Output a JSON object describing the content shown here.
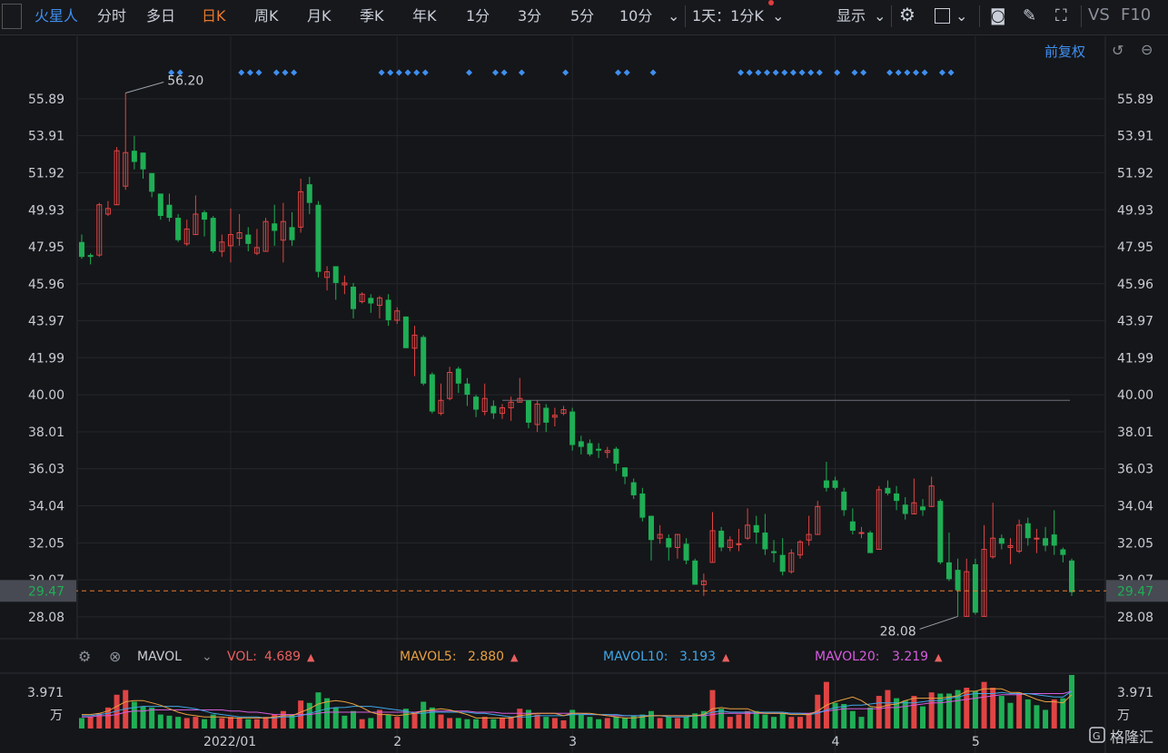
{
  "toolbar": {
    "stock_name": "火星人",
    "tabs": [
      "分时",
      "多日",
      "日K",
      "周K",
      "月K",
      "季K",
      "年K",
      "1分",
      "3分",
      "5分",
      "10分"
    ],
    "active_tab": "日K",
    "period_select": "1天：1分K",
    "display_label": "显示",
    "right_labels": [
      "VS",
      "F10"
    ]
  },
  "adjust_label": "前复权",
  "price_axis": {
    "ticks": [
      "55.89",
      "53.91",
      "51.92",
      "49.93",
      "47.95",
      "45.96",
      "43.97",
      "41.99",
      "40.00",
      "38.01",
      "36.03",
      "34.04",
      "32.05",
      "30.07",
      "28.08"
    ],
    "tick_values": [
      55.89,
      53.91,
      51.92,
      49.93,
      47.95,
      45.96,
      43.97,
      41.99,
      40.0,
      38.01,
      36.03,
      34.04,
      32.05,
      30.07,
      28.08
    ],
    "current_price": "29.47",
    "current_value": 29.47,
    "max_label": "56.20",
    "min_label": "28.08",
    "ref_line_value": 39.7
  },
  "indicator_bar": {
    "name": "MAVOL",
    "vol_label": "VOL:",
    "vol_value": "4.689",
    "mavol5_label": "MAVOL5:",
    "mavol5_value": "2.880",
    "mavol10_label": "MAVOL10:",
    "mavol10_value": "3.193",
    "mavol20_label": "MAVOL20:",
    "mavol20_value": "3.219"
  },
  "volume_axis": {
    "top": "3.971",
    "unit": "万"
  },
  "date_axis": [
    "2022/01",
    "2",
    "3",
    "4",
    "5"
  ],
  "colors": {
    "up": "#e04444",
    "down": "#1fae55",
    "bg": "#151619",
    "mavol5": "#e8a040",
    "mavol10": "#3fa6e8",
    "mavol20": "#d65ce0",
    "vol_label": "#e86060",
    "accent": "#3f8ff0"
  },
  "watermark": "格隆汇",
  "chart_data": {
    "type": "candlestick",
    "y_range": [
      27.0,
      57.2
    ],
    "candles": [
      [
        48.2,
        47.4,
        48.6,
        47.3
      ],
      [
        47.5,
        47.4,
        47.6,
        47.0
      ],
      [
        47.5,
        50.2,
        50.3,
        47.4
      ],
      [
        49.7,
        50.0,
        50.4,
        49.6
      ],
      [
        50.2,
        53.1,
        53.3,
        50.2
      ],
      [
        51.2,
        53.0,
        56.2,
        51.0
      ],
      [
        53.1,
        52.5,
        53.9,
        52.1
      ],
      [
        53.0,
        52.1,
        53.0,
        51.6
      ],
      [
        51.9,
        50.9,
        51.9,
        50.6
      ],
      [
        50.8,
        49.6,
        50.8,
        49.4
      ],
      [
        50.2,
        49.5,
        50.8,
        49.3
      ],
      [
        49.5,
        48.3,
        49.7,
        48.2
      ],
      [
        48.1,
        48.9,
        49.4,
        48.0
      ],
      [
        48.6,
        49.7,
        50.7,
        48.6
      ],
      [
        49.8,
        49.4,
        49.9,
        48.5
      ],
      [
        49.5,
        47.7,
        49.6,
        47.6
      ],
      [
        47.7,
        48.2,
        48.6,
        47.4
      ],
      [
        48.0,
        48.6,
        50.0,
        47.1
      ],
      [
        48.4,
        48.7,
        49.7,
        48.0
      ],
      [
        48.6,
        48.1,
        49.0,
        47.7
      ],
      [
        47.6,
        47.9,
        48.9,
        47.5
      ],
      [
        47.7,
        49.3,
        49.5,
        47.7
      ],
      [
        49.2,
        48.8,
        50.2,
        48.0
      ],
      [
        48.3,
        49.3,
        50.3,
        47.1
      ],
      [
        49.0,
        48.3,
        49.8,
        48.0
      ],
      [
        49.0,
        50.9,
        51.6,
        48.7
      ],
      [
        51.3,
        50.3,
        51.7,
        49.7
      ],
      [
        50.2,
        46.6,
        50.4,
        46.3
      ],
      [
        46.3,
        46.6,
        46.9,
        45.6
      ],
      [
        46.9,
        46.0,
        46.9,
        45.1
      ],
      [
        45.9,
        46.0,
        46.4,
        45.4
      ],
      [
        45.8,
        44.6,
        46.0,
        44.1
      ],
      [
        45.0,
        45.4,
        45.5,
        44.9
      ],
      [
        45.2,
        44.9,
        45.4,
        44.4
      ],
      [
        44.8,
        45.2,
        45.3,
        44.1
      ],
      [
        45.1,
        44.0,
        45.4,
        43.7
      ],
      [
        44.0,
        44.5,
        44.7,
        43.8
      ],
      [
        44.2,
        42.5,
        44.2,
        42.6
      ],
      [
        42.5,
        43.2,
        43.7,
        41.0
      ],
      [
        43.1,
        40.6,
        43.2,
        40.5
      ],
      [
        41.1,
        39.1,
        41.2,
        39.0
      ],
      [
        39.0,
        39.7,
        40.6,
        38.9
      ],
      [
        39.8,
        41.2,
        41.5,
        39.7
      ],
      [
        41.4,
        40.6,
        41.5,
        40.1
      ],
      [
        40.6,
        40.0,
        40.9,
        39.4
      ],
      [
        39.9,
        39.2,
        40.0,
        38.8
      ],
      [
        39.1,
        39.8,
        40.6,
        38.9
      ],
      [
        39.4,
        39.0,
        39.7,
        38.7
      ],
      [
        39.0,
        39.3,
        39.5,
        38.7
      ],
      [
        39.3,
        39.6,
        39.9,
        38.6
      ],
      [
        39.6,
        39.8,
        40.9,
        39.6
      ],
      [
        39.7,
        38.5,
        39.7,
        38.2
      ],
      [
        38.4,
        39.5,
        39.7,
        38.0
      ],
      [
        39.3,
        38.5,
        39.5,
        38.0
      ],
      [
        38.8,
        38.9,
        39.3,
        38.3
      ],
      [
        39.0,
        39.2,
        39.4,
        38.9
      ],
      [
        39.1,
        37.3,
        39.3,
        37.0
      ],
      [
        37.5,
        37.2,
        37.8,
        36.8
      ],
      [
        37.4,
        36.8,
        37.6,
        36.7
      ],
      [
        37.1,
        37.0,
        37.4,
        36.6
      ],
      [
        36.9,
        37.0,
        37.2,
        36.6
      ],
      [
        37.1,
        36.3,
        37.2,
        35.9
      ],
      [
        36.1,
        35.6,
        36.1,
        35.2
      ],
      [
        35.3,
        34.6,
        35.5,
        34.4
      ],
      [
        34.7,
        33.4,
        35.0,
        33.2
      ],
      [
        33.5,
        32.2,
        33.5,
        31.1
      ],
      [
        32.3,
        32.5,
        33.0,
        32.0
      ],
      [
        32.3,
        31.8,
        32.5,
        31.1
      ],
      [
        31.8,
        32.5,
        32.5,
        31.2
      ],
      [
        32.0,
        31.1,
        32.3,
        30.9
      ],
      [
        31.1,
        29.8,
        31.2,
        29.8
      ],
      [
        29.8,
        30.0,
        30.4,
        29.2
      ],
      [
        31.0,
        32.7,
        33.7,
        31.0
      ],
      [
        32.7,
        31.8,
        32.9,
        31.6
      ],
      [
        31.8,
        32.2,
        32.4,
        31.6
      ],
      [
        32.0,
        32.0,
        32.8,
        31.6
      ],
      [
        32.3,
        33.0,
        33.9,
        32.2
      ],
      [
        33.0,
        32.6,
        33.5,
        32.0
      ],
      [
        32.6,
        31.7,
        33.6,
        31.4
      ],
      [
        31.6,
        31.5,
        32.2,
        31.0
      ],
      [
        31.4,
        30.5,
        32.3,
        30.3
      ],
      [
        30.5,
        31.5,
        31.7,
        30.4
      ],
      [
        31.4,
        32.1,
        32.2,
        31.2
      ],
      [
        32.2,
        32.5,
        33.5,
        31.9
      ],
      [
        32.5,
        34.0,
        34.3,
        32.5
      ],
      [
        35.4,
        35.0,
        36.4,
        34.8
      ],
      [
        35.4,
        35.0,
        35.6,
        34.9
      ],
      [
        34.8,
        33.8,
        35.0,
        33.5
      ],
      [
        33.2,
        32.7,
        33.9,
        32.5
      ],
      [
        32.6,
        32.6,
        32.9,
        32.3
      ],
      [
        32.6,
        31.5,
        32.7,
        31.5
      ],
      [
        31.7,
        34.9,
        35.1,
        31.7
      ],
      [
        35.0,
        34.7,
        35.4,
        34.6
      ],
      [
        34.7,
        34.3,
        35.1,
        33.8
      ],
      [
        34.1,
        33.6,
        34.5,
        33.3
      ],
      [
        33.6,
        34.2,
        35.5,
        33.6
      ],
      [
        34.0,
        33.8,
        34.4,
        33.5
      ],
      [
        34.0,
        35.1,
        35.6,
        34.0
      ],
      [
        34.3,
        31.0,
        34.4,
        30.9
      ],
      [
        31.0,
        30.1,
        32.6,
        30.0
      ],
      [
        30.6,
        29.5,
        31.2,
        28.1
      ],
      [
        28.1,
        30.5,
        31.2,
        28.1
      ],
      [
        30.9,
        28.3,
        31.2,
        28.2
      ],
      [
        28.1,
        31.7,
        33.0,
        28.1
      ],
      [
        31.3,
        32.3,
        34.2,
        31.2
      ],
      [
        32.3,
        32.0,
        32.5,
        31.7
      ],
      [
        31.8,
        31.9,
        32.3,
        30.9
      ],
      [
        31.6,
        33.0,
        33.3,
        31.5
      ],
      [
        33.1,
        32.3,
        33.4,
        31.9
      ],
      [
        32.3,
        32.3,
        32.8,
        31.5
      ],
      [
        32.3,
        31.9,
        32.9,
        31.6
      ],
      [
        32.5,
        31.9,
        33.8,
        31.4
      ],
      [
        31.7,
        31.4,
        31.8,
        31.0
      ],
      [
        31.1,
        29.4,
        31.2,
        29.2
      ]
    ],
    "volume_max": 3.971,
    "volumes": [
      [
        0.9,
        0
      ],
      [
        1.0,
        1
      ],
      [
        1.3,
        1
      ],
      [
        1.8,
        1
      ],
      [
        2.9,
        1
      ],
      [
        3.3,
        1
      ],
      [
        2.3,
        0
      ],
      [
        1.9,
        0
      ],
      [
        1.8,
        0
      ],
      [
        1.2,
        0
      ],
      [
        1.1,
        0
      ],
      [
        1.0,
        0
      ],
      [
        0.9,
        1
      ],
      [
        1.0,
        1
      ],
      [
        0.8,
        0
      ],
      [
        1.2,
        0
      ],
      [
        0.9,
        1
      ],
      [
        1.0,
        1
      ],
      [
        0.9,
        1
      ],
      [
        0.8,
        0
      ],
      [
        0.8,
        1
      ],
      [
        1.0,
        1
      ],
      [
        1.2,
        1
      ],
      [
        1.5,
        1
      ],
      [
        1.2,
        0
      ],
      [
        2.4,
        1
      ],
      [
        2.2,
        0
      ],
      [
        3.1,
        0
      ],
      [
        2.6,
        0
      ],
      [
        1.8,
        0
      ],
      [
        1.1,
        0
      ],
      [
        1.5,
        0
      ],
      [
        0.8,
        1
      ],
      [
        0.9,
        0
      ],
      [
        1.6,
        1
      ],
      [
        1.2,
        0
      ],
      [
        1.0,
        1
      ],
      [
        1.7,
        0
      ],
      [
        1.3,
        1
      ],
      [
        2.3,
        0
      ],
      [
        1.8,
        0
      ],
      [
        1.2,
        1
      ],
      [
        0.9,
        1
      ],
      [
        0.9,
        0
      ],
      [
        0.8,
        0
      ],
      [
        0.8,
        0
      ],
      [
        1.0,
        1
      ],
      [
        0.8,
        0
      ],
      [
        0.9,
        1
      ],
      [
        1.0,
        1
      ],
      [
        1.7,
        1
      ],
      [
        1.6,
        0
      ],
      [
        1.2,
        1
      ],
      [
        1.0,
        0
      ],
      [
        0.9,
        1
      ],
      [
        0.7,
        1
      ],
      [
        1.6,
        0
      ],
      [
        1.2,
        0
      ],
      [
        1.0,
        0
      ],
      [
        0.8,
        0
      ],
      [
        0.9,
        1
      ],
      [
        1.0,
        0
      ],
      [
        0.9,
        0
      ],
      [
        1.1,
        0
      ],
      [
        1.2,
        0
      ],
      [
        1.5,
        0
      ],
      [
        0.9,
        1
      ],
      [
        1.0,
        0
      ],
      [
        0.9,
        1
      ],
      [
        1.0,
        0
      ],
      [
        1.3,
        0
      ],
      [
        1.5,
        0
      ],
      [
        3.3,
        1
      ],
      [
        1.7,
        0
      ],
      [
        1.0,
        1
      ],
      [
        1.2,
        1
      ],
      [
        1.5,
        1
      ],
      [
        1.5,
        0
      ],
      [
        1.2,
        0
      ],
      [
        1.0,
        0
      ],
      [
        1.3,
        0
      ],
      [
        1.0,
        1
      ],
      [
        1.0,
        1
      ],
      [
        1.3,
        1
      ],
      [
        2.9,
        1
      ],
      [
        4.0,
        1
      ],
      [
        2.2,
        0
      ],
      [
        2.1,
        0
      ],
      [
        1.5,
        0
      ],
      [
        1.0,
        0
      ],
      [
        1.8,
        0
      ],
      [
        2.8,
        1
      ],
      [
        3.3,
        1
      ],
      [
        2.6,
        0
      ],
      [
        2.4,
        0
      ],
      [
        2.8,
        1
      ],
      [
        1.9,
        0
      ],
      [
        3.1,
        1
      ],
      [
        3.0,
        0
      ],
      [
        3.0,
        0
      ],
      [
        3.3,
        0
      ],
      [
        3.5,
        1
      ],
      [
        3.2,
        0
      ],
      [
        4.0,
        1
      ],
      [
        3.5,
        1
      ],
      [
        2.8,
        0
      ],
      [
        2.2,
        0
      ],
      [
        3.1,
        1
      ],
      [
        2.5,
        0
      ],
      [
        2.0,
        0
      ],
      [
        1.6,
        0
      ],
      [
        2.5,
        1
      ],
      [
        2.6,
        0
      ],
      [
        4.7,
        0
      ]
    ],
    "mavol5": [
      1.2,
      1.2,
      1.3,
      1.5,
      1.9,
      2.3,
      2.4,
      2.4,
      2.2,
      2.0,
      1.7,
      1.4,
      1.2,
      1.1,
      1.0,
      1.0,
      1.0,
      0.9,
      0.9,
      0.9,
      0.9,
      0.9,
      1.0,
      1.1,
      1.1,
      1.4,
      1.7,
      2.1,
      2.3,
      2.4,
      2.3,
      2.1,
      1.8,
      1.4,
      1.2,
      1.2,
      1.1,
      1.2,
      1.3,
      1.5,
      1.6,
      1.7,
      1.6,
      1.4,
      1.2,
      0.9,
      0.9,
      0.9,
      0.9,
      0.9,
      1.1,
      1.2,
      1.3,
      1.3,
      1.3,
      1.1,
      1.3,
      1.3,
      1.3,
      1.2,
      1.1,
      1.0,
      0.9,
      0.9,
      1.0,
      1.1,
      1.1,
      1.1,
      1.1,
      1.1,
      1.1,
      1.2,
      1.7,
      1.8,
      1.7,
      1.7,
      1.7,
      1.4,
      1.3,
      1.3,
      1.3,
      1.2,
      1.2,
      1.2,
      1.5,
      2.0,
      2.3,
      2.5,
      2.7,
      2.4,
      1.9,
      1.8,
      2.0,
      2.1,
      2.4,
      2.6,
      2.6,
      2.6,
      2.6,
      2.7,
      2.8,
      3.2,
      3.2,
      3.4,
      3.4,
      3.4,
      3.1,
      3.1,
      2.8,
      2.5,
      2.3,
      2.3,
      2.2,
      2.9
    ],
    "mavol10": [
      1.1,
      1.1,
      1.2,
      1.3,
      1.5,
      1.7,
      1.8,
      1.9,
      1.9,
      1.9,
      1.9,
      1.9,
      1.8,
      1.7,
      1.5,
      1.3,
      1.2,
      1.1,
      1.0,
      1.0,
      1.0,
      0.9,
      0.9,
      1.0,
      1.0,
      1.1,
      1.3,
      1.5,
      1.7,
      1.8,
      1.8,
      1.9,
      1.9,
      1.9,
      1.8,
      1.7,
      1.6,
      1.5,
      1.3,
      1.3,
      1.4,
      1.4,
      1.4,
      1.4,
      1.4,
      1.3,
      1.3,
      1.2,
      1.1,
      1.0,
      1.0,
      1.0,
      1.1,
      1.1,
      1.1,
      1.1,
      1.2,
      1.2,
      1.2,
      1.2,
      1.2,
      1.2,
      1.1,
      1.1,
      1.1,
      1.1,
      1.1,
      1.0,
      1.0,
      1.0,
      1.1,
      1.2,
      1.4,
      1.5,
      1.4,
      1.4,
      1.4,
      1.4,
      1.4,
      1.4,
      1.4,
      1.3,
      1.3,
      1.2,
      1.3,
      1.6,
      1.8,
      1.9,
      2.0,
      2.0,
      2.1,
      2.2,
      2.2,
      2.2,
      2.2,
      2.2,
      2.3,
      2.4,
      2.4,
      2.6,
      2.7,
      2.9,
      3.0,
      3.0,
      3.0,
      3.1,
      3.0,
      3.0,
      3.0,
      2.9,
      2.8,
      2.7,
      2.7,
      3.2
    ],
    "mavol20": [
      1.0,
      1.0,
      1.1,
      1.1,
      1.2,
      1.4,
      1.5,
      1.5,
      1.6,
      1.6,
      1.6,
      1.6,
      1.6,
      1.6,
      1.6,
      1.6,
      1.6,
      1.5,
      1.5,
      1.4,
      1.4,
      1.3,
      1.2,
      1.2,
      1.2,
      1.2,
      1.2,
      1.3,
      1.4,
      1.4,
      1.4,
      1.4,
      1.4,
      1.4,
      1.4,
      1.4,
      1.4,
      1.4,
      1.4,
      1.5,
      1.5,
      1.5,
      1.5,
      1.5,
      1.5,
      1.4,
      1.4,
      1.4,
      1.3,
      1.3,
      1.3,
      1.3,
      1.3,
      1.3,
      1.3,
      1.3,
      1.3,
      1.3,
      1.2,
      1.2,
      1.1,
      1.1,
      1.1,
      1.1,
      1.1,
      1.1,
      1.1,
      1.1,
      1.1,
      1.1,
      1.1,
      1.1,
      1.2,
      1.3,
      1.3,
      1.3,
      1.3,
      1.3,
      1.3,
      1.3,
      1.3,
      1.3,
      1.3,
      1.3,
      1.4,
      1.5,
      1.6,
      1.7,
      1.7,
      1.7,
      1.7,
      1.7,
      1.8,
      1.8,
      1.9,
      2.0,
      2.1,
      2.2,
      2.2,
      2.3,
      2.4,
      2.5,
      2.6,
      2.7,
      2.8,
      2.9,
      2.9,
      2.9,
      3.0,
      3.0,
      3.0,
      3.0,
      3.0,
      3.2
    ],
    "buy_markers": [
      4,
      5,
      12,
      13,
      14,
      16,
      17,
      18,
      28,
      29,
      30,
      31,
      32,
      33,
      38,
      41,
      42,
      44,
      49,
      55,
      56,
      59,
      69,
      70,
      71,
      72,
      73,
      74,
      75,
      76,
      77,
      78,
      80,
      82,
      83,
      86,
      87,
      88,
      89,
      90,
      92,
      93
    ],
    "date_tick_index": [
      17,
      36,
      56,
      86,
      102
    ],
    "max_index": 5,
    "min_index": 100
  }
}
